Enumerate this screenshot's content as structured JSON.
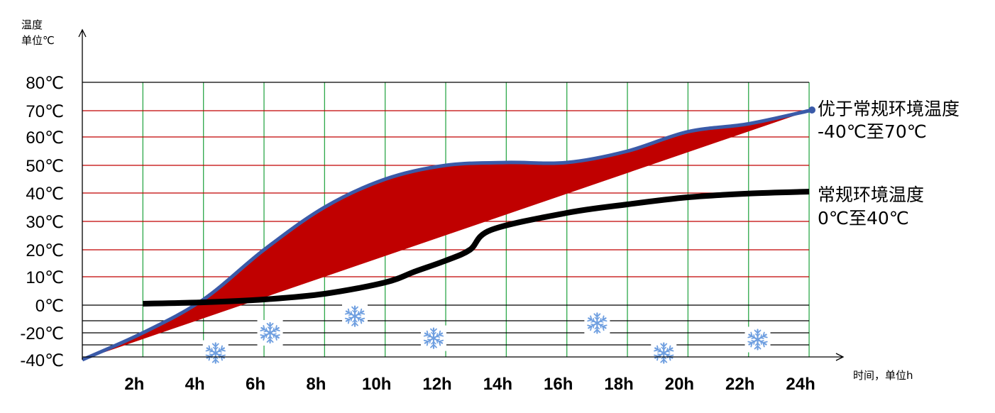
{
  "chart_data": {
    "type": "line",
    "y_axis_title_line1": "温度",
    "y_axis_title_line2": "单位℃",
    "x_axis_title": "时间，单位h",
    "x_ticks": [
      "2h",
      "4h",
      "6h",
      "8h",
      "10h",
      "12h",
      "14h",
      "16h",
      "18h",
      "20h",
      "22h",
      "24h"
    ],
    "y_ticks": [
      "80℃",
      "70℃",
      "60℃",
      "50℃",
      "40℃",
      "30℃",
      "20℃",
      "10℃",
      "0℃",
      "-20℃",
      "-40℃"
    ],
    "series": [
      {
        "name": "优于常规环境温度",
        "range_label": "-40℃至70℃",
        "color": "#3a5aa8",
        "fill": "#c00000",
        "upper": [
          [
            0,
            -40
          ],
          [
            2,
            -20
          ],
          [
            4,
            2
          ],
          [
            6,
            20
          ],
          [
            8,
            35
          ],
          [
            10,
            45
          ],
          [
            12,
            50
          ],
          [
            14,
            51
          ],
          [
            16,
            51
          ],
          [
            18,
            55
          ],
          [
            20,
            62
          ],
          [
            22,
            65
          ],
          [
            24,
            70
          ]
        ],
        "lower": [
          [
            0,
            -40
          ],
          [
            24,
            70
          ]
        ]
      },
      {
        "name": "常规环境温度",
        "range_label": "0℃至40℃",
        "color": "#000000",
        "values": [
          [
            2,
            0.5
          ],
          [
            4,
            1
          ],
          [
            6,
            2
          ],
          [
            8,
            4
          ],
          [
            10,
            8
          ],
          [
            11,
            12
          ],
          [
            12,
            16
          ],
          [
            12.8,
            20
          ],
          [
            13.5,
            27
          ],
          [
            16,
            33
          ],
          [
            18,
            36
          ],
          [
            20,
            38.5
          ],
          [
            22,
            39.8
          ],
          [
            24,
            40.5
          ]
        ]
      }
    ],
    "ylim": [
      -40,
      80
    ],
    "xlim": [
      0,
      24
    ],
    "snowflake_color": "#6f9fe0",
    "snowflakes": [
      [
        4.4,
        -35
      ],
      [
        6.2,
        -20
      ],
      [
        9,
        -8
      ],
      [
        11.6,
        -24
      ],
      [
        17,
        -13
      ],
      [
        19.2,
        -35
      ],
      [
        22.3,
        -25
      ]
    ],
    "grid": {
      "vertical_color": "#2ea84a",
      "horizontal_positive_color": "#c00000",
      "horizontal_negative_color": "#000000"
    }
  }
}
